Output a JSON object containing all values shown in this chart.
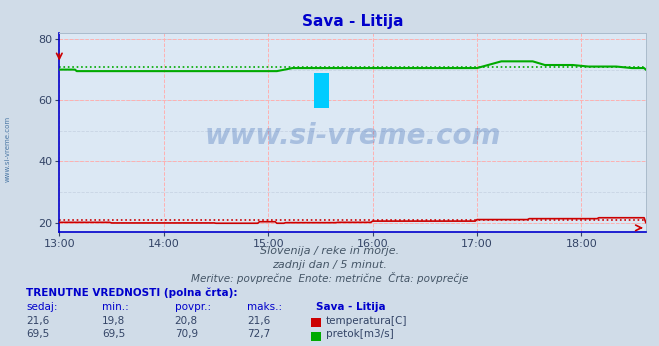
{
  "title": "Sava - Litija",
  "title_color": "#0000cc",
  "bg_color": "#d0dce8",
  "plot_bg_color": "#dce8f4",
  "grid_dashed_color": "#ffb0b0",
  "grid_minor_color": "#c8d4e4",
  "xmin": 0,
  "xmax": 337,
  "ymin": 17,
  "ymax": 82,
  "yticks": [
    20,
    40,
    60,
    80
  ],
  "xtick_labels": [
    "13:00",
    "14:00",
    "15:00",
    "16:00",
    "17:00",
    "18:00"
  ],
  "xtick_positions": [
    0,
    60,
    120,
    180,
    240,
    300
  ],
  "temp_color": "#cc0000",
  "flow_color": "#00aa00",
  "avg_temp": 20.8,
  "avg_flow": 70.9,
  "temp_current": "21,6",
  "temp_min": "19,8",
  "temp_avg": "20,8",
  "temp_max": "21,6",
  "flow_current": "69,5",
  "flow_min": "69,5",
  "flow_avg": "70,9",
  "flow_max": "72,7",
  "watermark": "www.si-vreme.com",
  "side_watermark": "www.si-vreme.com",
  "subtitle1": "Slovenija / reke in morje.",
  "subtitle2": "zadnji dan / 5 minut.",
  "subtitle3": "Meritve: povprečne  Enote: metrične  Črta: povprečje",
  "label_currentval": "TRENUTNE VREDNOSTI (polna črta):",
  "col_headers": [
    "sedaj:",
    "min.:",
    "povpr.:",
    "maks.:",
    "Sava - Litija"
  ],
  "label_temp": "temperatura[C]",
  "label_flow": "pretok[m3/s]",
  "spine_color": "#0000cc",
  "tick_color": "#334466"
}
